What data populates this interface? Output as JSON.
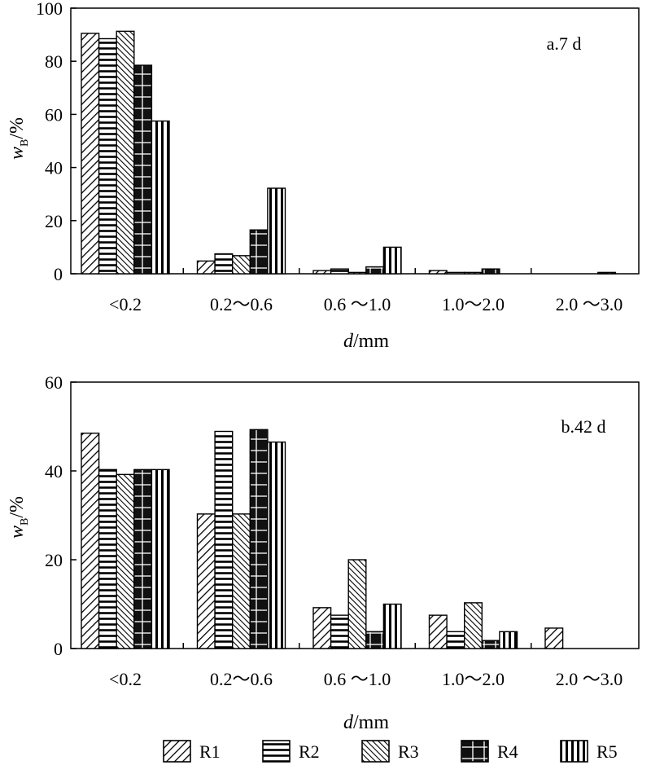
{
  "chart_data": [
    {
      "type": "bar",
      "panel_label": "a.7 d",
      "categories": [
        "<0.2",
        "0.2～0.6",
        "0.6 ～1.0",
        "1.0～2.0",
        "2.0 ～3.0"
      ],
      "series": [
        {
          "name": "R1",
          "values": [
            90.5,
            4.8,
            1.2,
            1.2,
            0
          ]
        },
        {
          "name": "R2",
          "values": [
            88.5,
            7.5,
            1.8,
            0.5,
            0
          ]
        },
        {
          "name": "R3",
          "values": [
            91.3,
            6.8,
            0.5,
            0.5,
            0
          ]
        },
        {
          "name": "R4",
          "values": [
            78.5,
            16.5,
            2.6,
            1.8,
            0.5
          ]
        },
        {
          "name": "R5",
          "values": [
            57.5,
            32.2,
            10.0,
            0,
            0
          ]
        }
      ],
      "ylabel_main": "w",
      "ylabel_sub": "B",
      "ylabel_unit": "/%",
      "xlabel_var": "d",
      "xlabel_unit": "/mm",
      "ylim": [
        0,
        100
      ],
      "yticks": [
        0,
        20,
        40,
        60,
        80,
        100
      ],
      "grid": false
    },
    {
      "type": "bar",
      "panel_label": "b.42 d",
      "categories": [
        "<0.2",
        "0.2～0.6",
        "0.6 ～1.0",
        "1.0～2.0",
        "2.0 ～3.0"
      ],
      "series": [
        {
          "name": "R1",
          "values": [
            48.5,
            30.3,
            9.2,
            7.5,
            4.6
          ]
        },
        {
          "name": "R2",
          "values": [
            40.3,
            48.9,
            7.5,
            3.8,
            0
          ]
        },
        {
          "name": "R3",
          "values": [
            39.2,
            30.3,
            20.0,
            10.3,
            0
          ]
        },
        {
          "name": "R4",
          "values": [
            40.3,
            49.3,
            3.8,
            1.8,
            0
          ]
        },
        {
          "name": "R5",
          "values": [
            40.3,
            46.5,
            10.0,
            3.8,
            0
          ]
        }
      ],
      "ylabel_main": "w",
      "ylabel_sub": "B",
      "ylabel_unit": "/%",
      "xlabel_var": "d",
      "xlabel_unit": "/mm",
      "ylim": [
        0,
        60
      ],
      "yticks": [
        0,
        20,
        40,
        60
      ],
      "grid": false
    }
  ],
  "legend": {
    "position": "bottom",
    "items": [
      {
        "name": "R1"
      },
      {
        "name": "R2"
      },
      {
        "name": "R3"
      },
      {
        "name": "R4"
      },
      {
        "name": "R5"
      }
    ]
  }
}
